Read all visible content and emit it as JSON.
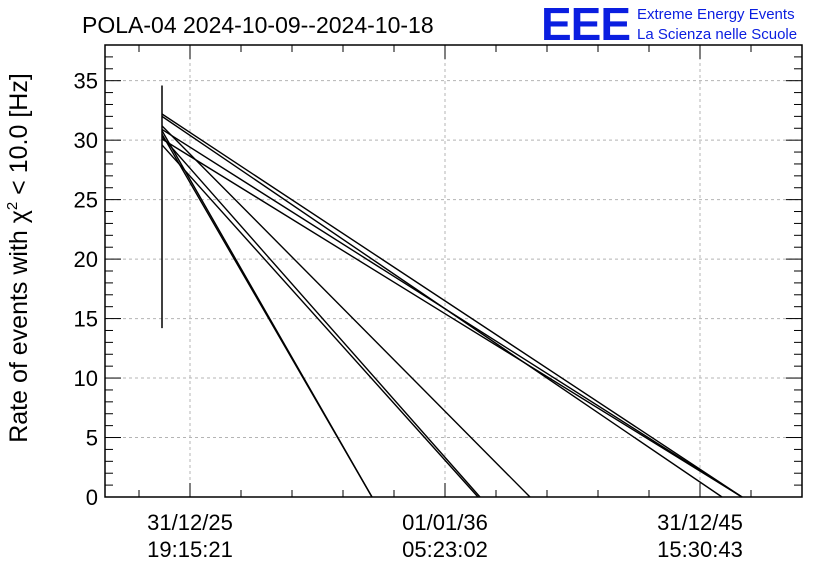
{
  "title": "POLA-04 2024-10-09--2024-10-18",
  "logo": {
    "letters": "EEE",
    "line1": "Extreme Energy Events",
    "line2": "La Scienza nelle Scuole"
  },
  "colors": {
    "logo": "#0a1ee0",
    "data": "#000000",
    "grid": "#b4b4b4"
  },
  "chart_data": {
    "type": "line",
    "title": "POLA-04 2024-10-09--2024-10-18",
    "ylabel_main": "Rate of events with χ",
    "ylabel_sup": "2",
    "ylabel_rest": " < 10.0 [Hz]",
    "xlabel": "",
    "ylim": [
      0,
      38
    ],
    "yticks": [
      0,
      5,
      10,
      15,
      20,
      25,
      30,
      35
    ],
    "xticks": [
      {
        "line1": "31/12/25",
        "line2": "19:15:21"
      },
      {
        "line1": "01/01/36",
        "line2": "05:23:02"
      },
      {
        "line1": "31/12/45",
        "line2": "15:30:43"
      }
    ],
    "grid": true,
    "spike": {
      "ymin": 14.2,
      "ymax": 34.6
    },
    "series": [
      {
        "values": [
          32.2,
          0
        ]
      },
      {
        "values": [
          32.0,
          0
        ]
      },
      {
        "values": [
          30.8,
          0
        ]
      },
      {
        "values": [
          30.5,
          0
        ]
      },
      {
        "values": [
          31.2,
          0
        ]
      },
      {
        "values": [
          30.3,
          0
        ]
      },
      {
        "values": [
          29.6,
          0
        ]
      },
      {
        "values": [
          30.9,
          0
        ]
      },
      {
        "values": [
          30.1,
          0
        ]
      }
    ]
  }
}
